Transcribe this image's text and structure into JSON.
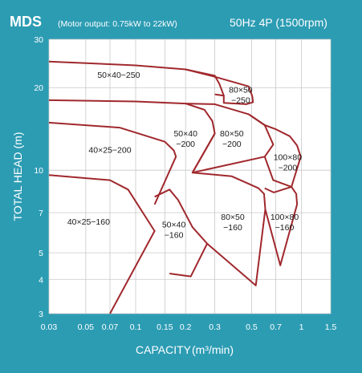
{
  "header": {
    "series": "MDS",
    "motor_output": "(Motor output: 0.75kW to 22kW)",
    "spec": "50Hz 4P (1500rpm)"
  },
  "colors": {
    "background": "#2c9cb3",
    "plot_area": "#ffffff",
    "curve": "#a0282d",
    "grid": "#c8c8c8",
    "text": "#ffffff",
    "label_text": "#1a1a1a"
  },
  "chart_data": {
    "type": "line",
    "x_scale": "log",
    "y_scale": "log",
    "xlabel": "CAPACITY",
    "xlabel_unit": "(m³/min)",
    "ylabel": "TOTAL HEAD (m)",
    "xlim": [
      0.03,
      1.5
    ],
    "ylim": [
      3,
      30
    ],
    "grid": true,
    "x_ticks": [
      {
        "value": 0.03,
        "label": "0.03"
      },
      {
        "value": 0.05,
        "label": "0.05"
      },
      {
        "value": 0.07,
        "label": "0.07"
      },
      {
        "value": 0.1,
        "label": "0.1"
      },
      {
        "value": 0.15,
        "label": "0.15"
      },
      {
        "value": 0.2,
        "label": "0.2"
      },
      {
        "value": 0.3,
        "label": "0.3"
      },
      {
        "value": 0.5,
        "label": "0.5"
      },
      {
        "value": 0.7,
        "label": "0.7"
      },
      {
        "value": 1,
        "label": "1"
      },
      {
        "value": 1.5,
        "label": "1.5"
      }
    ],
    "y_ticks": [
      {
        "value": 3,
        "label": "3"
      },
      {
        "value": 4,
        "label": "4"
      },
      {
        "value": 5,
        "label": "5"
      },
      {
        "value": 7,
        "label": "7"
      },
      {
        "value": 10,
        "label": "10"
      },
      {
        "value": 20,
        "label": "20"
      },
      {
        "value": 30,
        "label": "30"
      }
    ],
    "regions": [
      {
        "label": "50×40−250",
        "label_pos": [
          0.079,
          22.3
        ],
        "points": [
          [
            0.03,
            24.9
          ],
          [
            0.1,
            24.1
          ],
          [
            0.2,
            23.3
          ],
          [
            0.3,
            22.1
          ],
          [
            0.32,
            20.6
          ],
          [
            0.34,
            18.7
          ],
          [
            0.3,
            18.9
          ]
        ]
      },
      {
        "label": "80×50\n−250",
        "label_pos": [
          0.43,
          18.9
        ],
        "points": [
          [
            0.2,
            23.3
          ],
          [
            0.3,
            21.9
          ],
          [
            0.48,
            20.2
          ],
          [
            0.505,
            18.6
          ],
          [
            0.51,
            17.7
          ],
          [
            0.465,
            17.4
          ],
          [
            0.34,
            17.6
          ],
          [
            0.34,
            18.7
          ]
        ]
      },
      {
        "label": "50×40\n−200",
        "label_pos": [
          0.2,
          13.1
        ],
        "points": [
          [
            0.03,
            18.0
          ],
          [
            0.1,
            17.8
          ],
          [
            0.2,
            17.5
          ],
          [
            0.26,
            16.6
          ],
          [
            0.29,
            15.1
          ],
          [
            0.3,
            13.6
          ],
          [
            0.22,
            9.8
          ]
        ]
      },
      {
        "label": "80×50\n−200",
        "label_pos": [
          0.38,
          13.1
        ],
        "points": [
          [
            0.2,
            17.5
          ],
          [
            0.3,
            17.4
          ],
          [
            0.48,
            16.0
          ],
          [
            0.6,
            14.6
          ],
          [
            0.675,
            12.4
          ],
          [
            0.6,
            11.2
          ],
          [
            0.22,
            9.8
          ],
          [
            0.3,
            13.6
          ]
        ]
      },
      {
        "label": "100×80\n−200",
        "label_pos": [
          0.825,
          10.75
        ],
        "points": [
          [
            0.48,
            16.0
          ],
          [
            0.6,
            14.6
          ],
          [
            0.7,
            14.1
          ],
          [
            0.85,
            13.3
          ],
          [
            0.94,
            12.3
          ],
          [
            0.99,
            11.2
          ],
          [
            0.87,
            8.7
          ],
          [
            0.675,
            9.2
          ],
          [
            0.6,
            11.2
          ]
        ]
      },
      {
        "label": "40×25−200",
        "label_pos": [
          0.07,
          11.9
        ],
        "points": [
          [
            0.03,
            14.9
          ],
          [
            0.08,
            14.3
          ],
          [
            0.15,
            12.7
          ],
          [
            0.17,
            11.8
          ],
          [
            0.175,
            11.2
          ],
          [
            0.13,
            7.5
          ]
        ]
      },
      {
        "label": "40×25−160",
        "label_pos": [
          0.052,
          6.5
        ],
        "points": [
          [
            0.03,
            9.6
          ],
          [
            0.07,
            9.2
          ],
          [
            0.09,
            8.5
          ],
          [
            0.13,
            6.0
          ],
          [
            0.07,
            3.0
          ]
        ]
      },
      {
        "label": "50×40\n−160",
        "label_pos": [
          0.17,
          6.1
        ],
        "points": [
          [
            0.13,
            8.0
          ],
          [
            0.16,
            8.5
          ],
          [
            0.18,
            7.8
          ],
          [
            0.22,
            6.2
          ],
          [
            0.27,
            5.4
          ],
          [
            0.215,
            4.1
          ],
          [
            0.16,
            4.2
          ]
        ]
      },
      {
        "label": "80×50\n−160",
        "label_pos": [
          0.385,
          6.5
        ],
        "points": [
          [
            0.22,
            9.8
          ],
          [
            0.38,
            9.5
          ],
          [
            0.55,
            8.6
          ],
          [
            0.595,
            8.2
          ],
          [
            0.605,
            7.2
          ],
          [
            0.53,
            3.8
          ],
          [
            0.27,
            5.4
          ]
        ]
      },
      {
        "label": "100×80\n−160",
        "label_pos": [
          0.79,
          6.5
        ],
        "points": [
          [
            0.6,
            8.6
          ],
          [
            0.68,
            8.3
          ],
          [
            0.87,
            8.7
          ],
          [
            0.93,
            8.2
          ],
          [
            0.94,
            7.5
          ],
          [
            0.745,
            4.5
          ],
          [
            0.605,
            7.2
          ]
        ]
      }
    ]
  }
}
